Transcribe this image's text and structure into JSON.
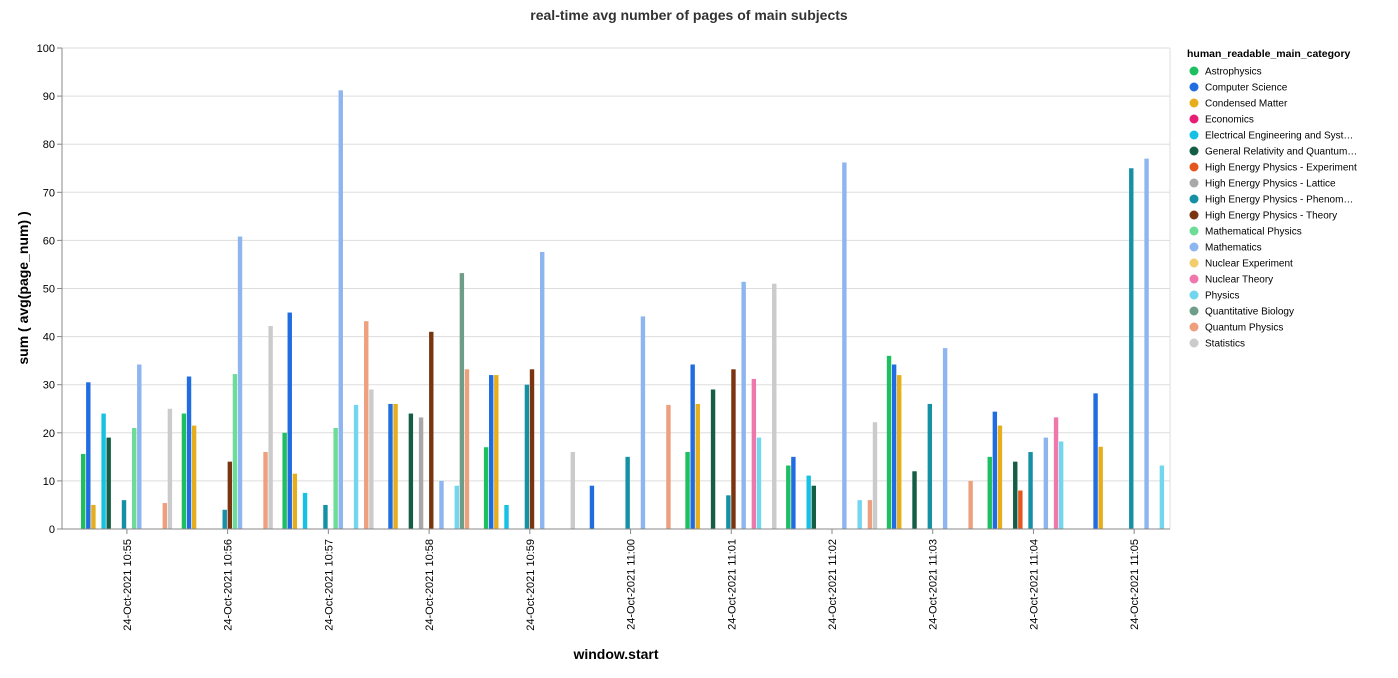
{
  "chart_data": {
    "type": "bar",
    "title": "real-time avg number of pages of main subjects",
    "xlabel": "window.start",
    "ylabel": "sum ( avg(page_num) )",
    "ylim": [
      0,
      100
    ],
    "yticks": [
      0,
      10,
      20,
      30,
      40,
      50,
      60,
      70,
      80,
      90,
      100
    ],
    "grid": true,
    "legend": {
      "title": "human_readable_main_category",
      "position": "right"
    },
    "categories": [
      "24-Oct-2021 10:55",
      "24-Oct-2021 10:56",
      "24-Oct-2021 10:57",
      "24-Oct-2021 10:58",
      "24-Oct-2021 10:59",
      "24-Oct-2021 11:00",
      "24-Oct-2021 11:01",
      "24-Oct-2021 11:02",
      "24-Oct-2021 11:03",
      "24-Oct-2021 11:04",
      "24-Oct-2021 11:05"
    ],
    "series": [
      {
        "name": "Astrophysics",
        "legend_label": "Astrophysics",
        "color": "#1dbf5e",
        "values": [
          15.6,
          24,
          20,
          null,
          17,
          null,
          16,
          13.2,
          36,
          15,
          null
        ]
      },
      {
        "name": "Computer Science",
        "legend_label": "Computer Science",
        "color": "#1f6de0",
        "values": [
          30.5,
          31.7,
          45,
          26,
          32,
          9,
          34.2,
          15,
          34.2,
          24.4,
          28.2
        ]
      },
      {
        "name": "Condensed Matter",
        "legend_label": "Condensed Matter",
        "color": "#e6ae1c",
        "values": [
          5,
          21.5,
          11.5,
          26,
          32,
          null,
          26,
          null,
          32,
          21.5,
          17.1
        ]
      },
      {
        "name": "Economics",
        "legend_label": "Economics",
        "color": "#e61c75",
        "values": [
          null,
          null,
          null,
          null,
          null,
          null,
          null,
          null,
          null,
          null,
          null
        ]
      },
      {
        "name": "Electrical Engineering and Systems Science",
        "legend_label": "Electrical Engineering and Syst…",
        "color": "#17c1e3",
        "values": [
          24,
          null,
          7.5,
          null,
          5,
          null,
          null,
          11.1,
          null,
          null,
          null
        ]
      },
      {
        "name": "General Relativity and Quantum Cosmology",
        "legend_label": "General Relativity and Quantum…",
        "color": "#135e45",
        "values": [
          19,
          null,
          null,
          24,
          null,
          null,
          29,
          9,
          12,
          14,
          null
        ]
      },
      {
        "name": "High Energy Physics - Experiment",
        "legend_label": "High Energy Physics - Experiment",
        "color": "#e3561d",
        "values": [
          null,
          null,
          null,
          null,
          null,
          null,
          null,
          null,
          null,
          8,
          null
        ]
      },
      {
        "name": "High Energy Physics - Lattice",
        "legend_label": "High Energy Physics - Lattice",
        "color": "#a8a8a8",
        "values": [
          null,
          null,
          null,
          23.2,
          null,
          null,
          null,
          null,
          null,
          null,
          null
        ]
      },
      {
        "name": "High Energy Physics - Phenomenology",
        "legend_label": "High Energy Physics - Phenom…",
        "color": "#1590a5",
        "values": [
          6,
          4,
          5,
          null,
          30,
          15,
          7,
          null,
          26,
          16,
          75
        ]
      },
      {
        "name": "High Energy Physics - Theory",
        "legend_label": "High Energy Physics - Theory",
        "color": "#7a3410",
        "values": [
          null,
          14,
          null,
          41,
          33.2,
          null,
          33.2,
          null,
          null,
          null,
          null
        ]
      },
      {
        "name": "Mathematical Physics",
        "legend_label": "Mathematical Physics",
        "color": "#6cdc96",
        "values": [
          21,
          32.2,
          21,
          null,
          null,
          null,
          null,
          null,
          null,
          null,
          null
        ]
      },
      {
        "name": "Mathematics",
        "legend_label": "Mathematics",
        "color": "#8db5ef",
        "values": [
          34.2,
          60.8,
          91.2,
          10,
          57.6,
          44.2,
          51.4,
          76.2,
          37.6,
          19,
          77
        ]
      },
      {
        "name": "Nuclear Experiment",
        "legend_label": "Nuclear Experiment",
        "color": "#f1cd6e",
        "values": [
          null,
          null,
          null,
          null,
          null,
          null,
          null,
          null,
          null,
          null,
          null
        ]
      },
      {
        "name": "Nuclear Theory",
        "legend_label": "Nuclear Theory",
        "color": "#ee77ab",
        "values": [
          null,
          null,
          null,
          null,
          null,
          null,
          31.2,
          null,
          null,
          23.2,
          null
        ]
      },
      {
        "name": "Physics",
        "legend_label": "Physics",
        "color": "#72d6ee",
        "values": [
          null,
          null,
          25.8,
          9,
          null,
          null,
          19,
          6,
          null,
          18.2,
          13.2
        ]
      },
      {
        "name": "Quantitative Biology",
        "legend_label": "Quantitative Biology",
        "color": "#6e9e8a",
        "values": [
          null,
          null,
          null,
          53.2,
          null,
          null,
          null,
          null,
          null,
          null,
          null
        ]
      },
      {
        "name": "Quantum Physics",
        "legend_label": "Quantum Physics",
        "color": "#ee9f7d",
        "values": [
          5.4,
          16,
          43.2,
          33.2,
          null,
          25.8,
          null,
          6,
          10,
          null,
          null
        ]
      },
      {
        "name": "Statistics",
        "legend_label": "Statistics",
        "color": "#cbcbcb",
        "values": [
          25,
          42.2,
          29,
          null,
          16,
          null,
          51,
          22.2,
          null,
          null,
          null
        ]
      }
    ]
  }
}
